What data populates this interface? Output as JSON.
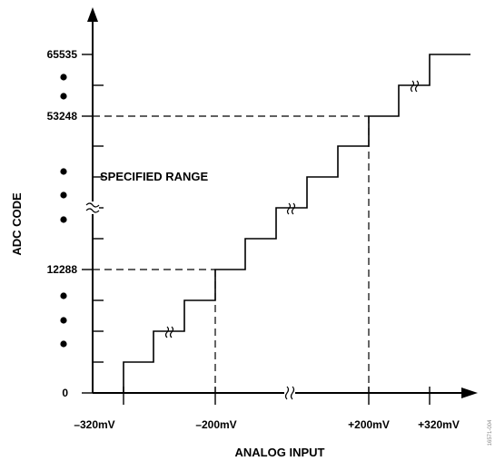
{
  "diagram": {
    "x_axis_label": "ANALOG INPUT",
    "y_axis_label": "ADC CODE",
    "region_label": "SPECIFIED RANGE",
    "y_tick_labels": [
      "0",
      "12288",
      "53248",
      "65535"
    ],
    "x_tick_labels": [
      "–320mV",
      "–200mV",
      "+200mV",
      "+320mV"
    ],
    "figure_id": "16571-004"
  }
}
